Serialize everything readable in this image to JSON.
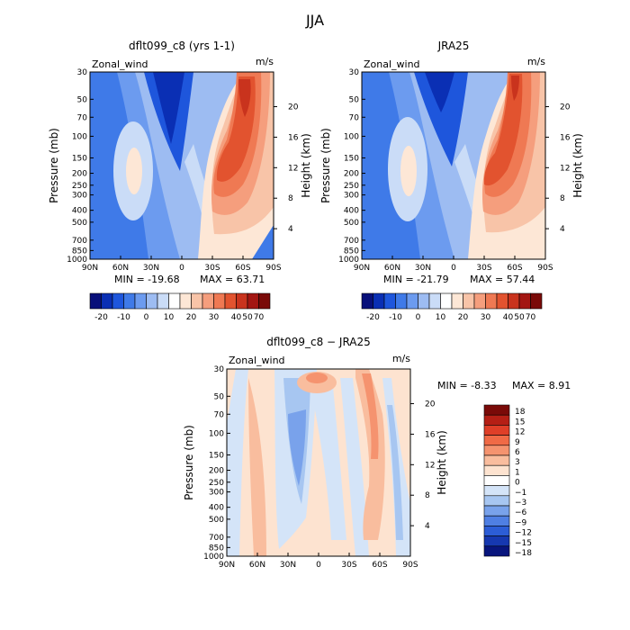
{
  "figure": {
    "title": "JJA"
  },
  "chart_data": [
    {
      "type": "heatmap",
      "title": "dflt099_c8 (yrs 1-1)",
      "variable_label": "Zonal_wind",
      "units_label": "m/s",
      "ylabel": "Pressure (mb)",
      "ylabel_right": "Height (km)",
      "x_ticks": [
        "90N",
        "60N",
        "30N",
        "0",
        "30S",
        "60S",
        "90S"
      ],
      "y_ticks": [
        "30",
        "50",
        "70",
        "100",
        "150",
        "200",
        "250",
        "300",
        "400",
        "500",
        "700",
        "850",
        "1000"
      ],
      "y_ticks_right": [
        "20",
        "16",
        "12",
        "8",
        "4"
      ],
      "min_text": "MIN = -19.68",
      "max_text": "MAX = 63.71",
      "colorbar_labels": [
        "-20",
        "-10",
        "0",
        "10",
        "20",
        "30",
        "40",
        "50",
        "70"
      ]
    },
    {
      "type": "heatmap",
      "title": "JRA25",
      "variable_label": "Zonal_wind",
      "units_label": "m/s",
      "ylabel": "Pressure (mb)",
      "ylabel_right": "Height (km)",
      "x_ticks": [
        "90N",
        "60N",
        "30N",
        "0",
        "30S",
        "60S",
        "90S"
      ],
      "y_ticks": [
        "30",
        "50",
        "70",
        "100",
        "150",
        "200",
        "250",
        "300",
        "400",
        "500",
        "700",
        "850",
        "1000"
      ],
      "y_ticks_right": [
        "20",
        "16",
        "12",
        "8",
        "4"
      ],
      "min_text": "MIN = -21.79",
      "max_text": "MAX = 57.44",
      "colorbar_labels": [
        "-20",
        "-10",
        "0",
        "10",
        "20",
        "30",
        "40",
        "50",
        "70"
      ]
    },
    {
      "type": "heatmap",
      "title": "dflt099_c8 − JRA25",
      "variable_label": "Zonal_wind",
      "units_label": "m/s",
      "ylabel": "Pressure (mb)",
      "ylabel_right": "Height (km)",
      "x_ticks": [
        "90N",
        "60N",
        "30N",
        "0",
        "30S",
        "60S",
        "90S"
      ],
      "y_ticks": [
        "30",
        "50",
        "70",
        "100",
        "150",
        "200",
        "250",
        "300",
        "400",
        "500",
        "700",
        "850",
        "1000"
      ],
      "y_ticks_right": [
        "20",
        "16",
        "12",
        "8",
        "4"
      ],
      "min_text": "MIN =   -8.33",
      "max_text": "MAX =    8.91",
      "colorbar_labels": [
        "18",
        "15",
        "12",
        "9",
        "6",
        "3",
        "1",
        "0",
        "−1",
        "−3",
        "−6",
        "−9",
        "−12",
        "−15",
        "−18"
      ]
    }
  ],
  "palettes": {
    "wind": [
      "#08107a",
      "#0a2fb4",
      "#1e56dc",
      "#3f7ae8",
      "#6c9bef",
      "#9dbcf2",
      "#cadcf7",
      "#ffffff",
      "#fde7d6",
      "#f8c4a8",
      "#f59e7d",
      "#ef7953",
      "#e2532f",
      "#c9331d",
      "#a31612",
      "#7a0a08"
    ],
    "diff": [
      "#7a0a08",
      "#b51f15",
      "#df3f28",
      "#f06a46",
      "#f5936f",
      "#f9bd9e",
      "#fde3d0",
      "#ffffff",
      "#d4e4f8",
      "#a7c6f1",
      "#79a2eb",
      "#4f7fe3",
      "#2c5dd6",
      "#1638b0",
      "#08157d"
    ]
  }
}
